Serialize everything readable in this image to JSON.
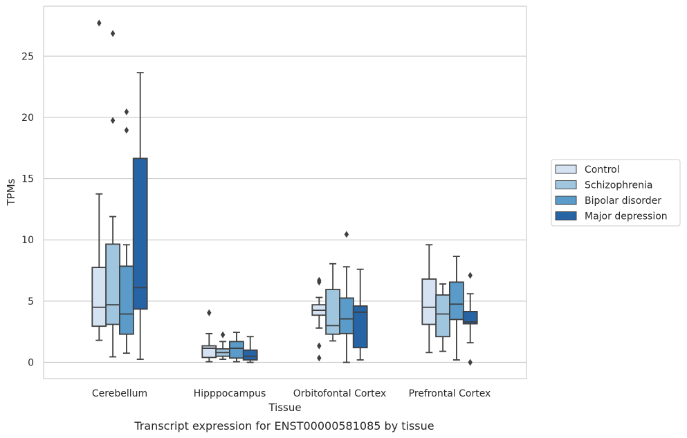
{
  "chart_data": {
    "type": "box",
    "caption": "Transcript expression for ENST00000581085 by tissue",
    "xlabel": "Tissue",
    "ylabel": "TPMs",
    "ylim": [
      -1.3,
      29
    ],
    "yticks": [
      0,
      5,
      10,
      15,
      20,
      25
    ],
    "grid": "horizontal",
    "legend_position": "right",
    "categories": [
      "Cerebellum",
      "Hipppocampus",
      "Orbitofontal Cortex",
      "Prefrontal Cortex"
    ],
    "series": [
      {
        "name": "Control",
        "color": "#d4e2f2",
        "boxes": [
          {
            "whislo": 1.8,
            "q1": 2.95,
            "med": 4.5,
            "q3": 7.75,
            "whishi": 13.75,
            "fliers": [
              27.7
            ]
          },
          {
            "whislo": 0.05,
            "q1": 0.4,
            "med": 1.15,
            "q3": 1.35,
            "whishi": 2.35,
            "fliers": [
              4.05
            ]
          },
          {
            "whislo": 2.8,
            "q1": 3.85,
            "med": 4.25,
            "q3": 4.7,
            "whishi": 5.3,
            "fliers": [
              6.55,
              6.7,
              1.35,
              0.35
            ]
          },
          {
            "whislo": 0.8,
            "q1": 3.1,
            "med": 4.5,
            "q3": 6.8,
            "whishi": 9.6,
            "fliers": []
          }
        ]
      },
      {
        "name": "Schizophrenia",
        "color": "#9fc6de",
        "boxes": [
          {
            "whislo": 0.45,
            "q1": 3.1,
            "med": 4.7,
            "q3": 9.65,
            "whishi": 11.9,
            "fliers": [
              26.85,
              19.75
            ]
          },
          {
            "whislo": 0.25,
            "q1": 0.5,
            "med": 0.8,
            "q3": 1.1,
            "whishi": 1.7,
            "fliers": [
              2.25
            ]
          },
          {
            "whislo": 1.75,
            "q1": 2.3,
            "med": 3.0,
            "q3": 5.95,
            "whishi": 8.05,
            "fliers": []
          },
          {
            "whislo": 0.9,
            "q1": 2.1,
            "med": 3.95,
            "q3": 5.5,
            "whishi": 6.4,
            "fliers": []
          }
        ]
      },
      {
        "name": "Bipolar disorder",
        "color": "#5a9bc9",
        "boxes": [
          {
            "whislo": 0.75,
            "q1": 2.3,
            "med": 3.95,
            "q3": 7.85,
            "whishi": 9.6,
            "fliers": [
              20.45,
              18.95
            ]
          },
          {
            "whislo": 0.05,
            "q1": 0.35,
            "med": 1.15,
            "q3": 1.7,
            "whishi": 2.45,
            "fliers": []
          },
          {
            "whislo": 0.0,
            "q1": 2.35,
            "med": 3.55,
            "q3": 5.25,
            "whishi": 7.8,
            "fliers": [
              10.45
            ]
          },
          {
            "whislo": 0.2,
            "q1": 3.5,
            "med": 4.75,
            "q3": 6.55,
            "whishi": 8.65,
            "fliers": []
          }
        ]
      },
      {
        "name": "Major depression",
        "color": "#2664a6",
        "boxes": [
          {
            "whislo": 0.25,
            "q1": 4.35,
            "med": 6.1,
            "q3": 16.65,
            "whishi": 23.65,
            "fliers": []
          },
          {
            "whislo": 0.0,
            "q1": 0.2,
            "med": 0.5,
            "q3": 1.0,
            "whishi": 2.1,
            "fliers": []
          },
          {
            "whislo": 0.2,
            "q1": 1.2,
            "med": 4.1,
            "q3": 4.6,
            "whishi": 7.6,
            "fliers": []
          },
          {
            "whislo": 1.6,
            "q1": 3.15,
            "med": 3.3,
            "q3": 4.15,
            "whishi": 5.6,
            "fliers": [
              7.1,
              0.0
            ]
          }
        ]
      }
    ]
  }
}
